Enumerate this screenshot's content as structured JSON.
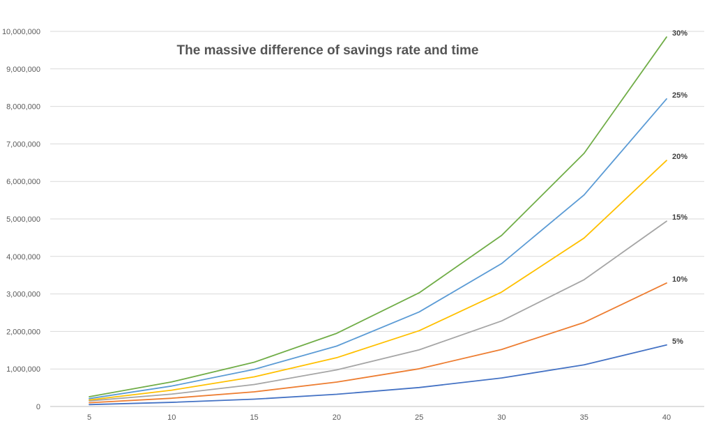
{
  "chart_data": {
    "type": "line",
    "title": "The massive difference of savings rate and time",
    "xlabel": "",
    "ylabel": "",
    "x": [
      5,
      10,
      15,
      20,
      25,
      30,
      35,
      40
    ],
    "ylim": [
      0,
      10000000
    ],
    "yticks": [
      0,
      1000000,
      2000000,
      3000000,
      4000000,
      5000000,
      6000000,
      7000000,
      8000000,
      9000000,
      10000000
    ],
    "ytick_labels": [
      "0",
      "1,000,000",
      "2,000,000",
      "3,000,000",
      "4,000,000",
      "5,000,000",
      "6,000,000",
      "7,000,000",
      "8,000,000",
      "9,000,000",
      "10,000,000"
    ],
    "xtick_labels": [
      "5",
      "10",
      "15",
      "20",
      "25",
      "30",
      "35",
      "40"
    ],
    "grid": true,
    "legend": "none (series labeled at line ends)",
    "series": [
      {
        "name": "5%",
        "color": "#4472C4",
        "values": [
          50000,
          110000,
          195000,
          325000,
          505000,
          760000,
          1110000,
          1640000
        ]
      },
      {
        "name": "10%",
        "color": "#ED7D31",
        "values": [
          100000,
          220000,
          390000,
          650000,
          1005000,
          1520000,
          2240000,
          3290000
        ]
      },
      {
        "name": "15%",
        "color": "#A5A5A5",
        "values": [
          150000,
          330000,
          585000,
          975000,
          1510000,
          2280000,
          3380000,
          4940000
        ]
      },
      {
        "name": "20%",
        "color": "#FFC000",
        "values": [
          175000,
          435000,
          790000,
          1300000,
          2020000,
          3050000,
          4490000,
          6560000
        ]
      },
      {
        "name": "25%",
        "color": "#5B9BD5",
        "values": [
          210000,
          545000,
          990000,
          1610000,
          2520000,
          3810000,
          5640000,
          8200000
        ]
      },
      {
        "name": "30%",
        "color": "#70AD47",
        "values": [
          260000,
          655000,
          1180000,
          1950000,
          3030000,
          4560000,
          6750000,
          9850000
        ]
      }
    ]
  }
}
